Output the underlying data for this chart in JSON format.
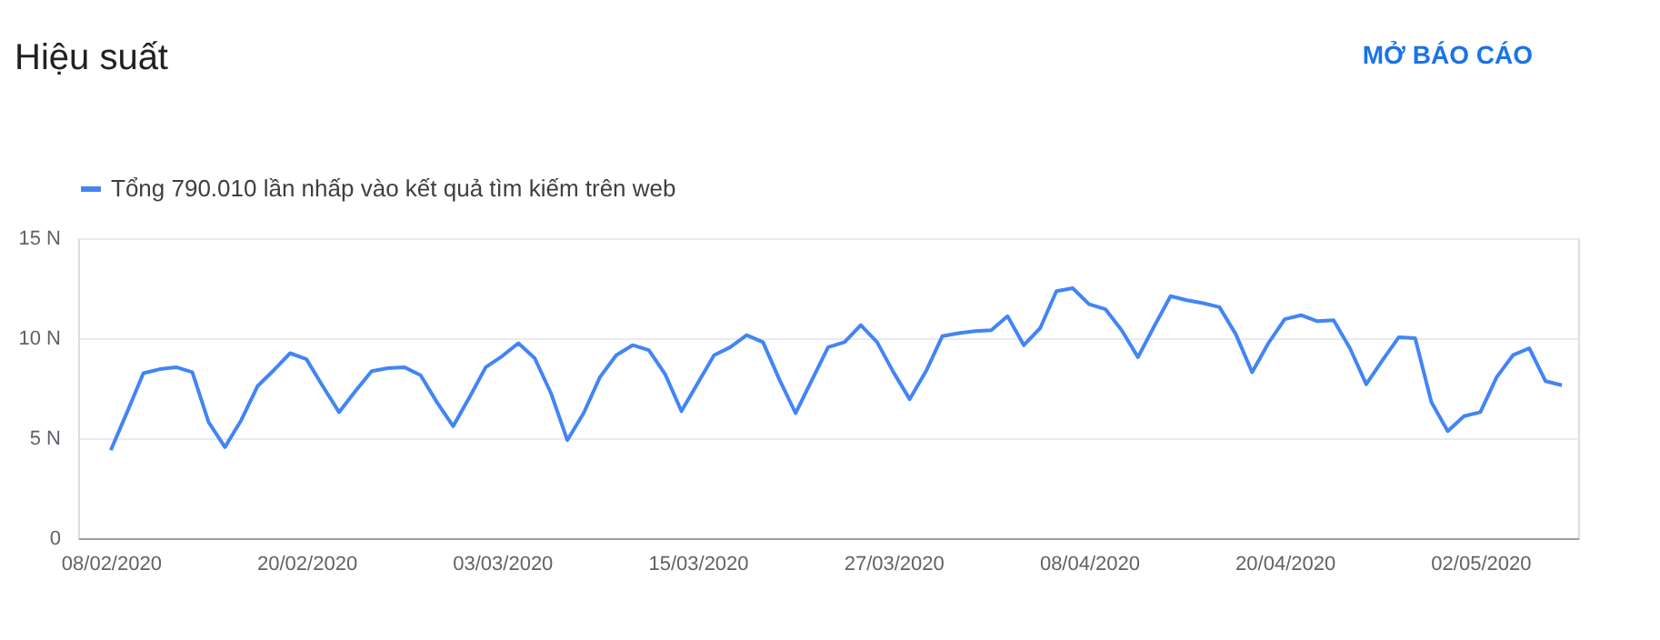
{
  "chart_data": {
    "type": "line",
    "title": "Hiệu suất",
    "annotations": [
      "MỞ BÁO CÁO"
    ],
    "x": [
      "2020-02-08",
      "2020-02-09",
      "2020-02-10",
      "2020-02-11",
      "2020-02-12",
      "2020-02-13",
      "2020-02-14",
      "2020-02-15",
      "2020-02-16",
      "2020-02-17",
      "2020-02-18",
      "2020-02-19",
      "2020-02-20",
      "2020-02-21",
      "2020-02-22",
      "2020-02-23",
      "2020-02-24",
      "2020-02-25",
      "2020-02-26",
      "2020-02-27",
      "2020-02-28",
      "2020-02-29",
      "2020-03-01",
      "2020-03-02",
      "2020-03-03",
      "2020-03-04",
      "2020-03-05",
      "2020-03-06",
      "2020-03-07",
      "2020-03-08",
      "2020-03-09",
      "2020-03-10",
      "2020-03-11",
      "2020-03-12",
      "2020-03-13",
      "2020-03-14",
      "2020-03-15",
      "2020-03-16",
      "2020-03-17",
      "2020-03-18",
      "2020-03-19",
      "2020-03-20",
      "2020-03-21",
      "2020-03-22",
      "2020-03-23",
      "2020-03-24",
      "2020-03-25",
      "2020-03-26",
      "2020-03-27",
      "2020-03-28",
      "2020-03-29",
      "2020-03-30",
      "2020-03-31",
      "2020-04-01",
      "2020-04-02",
      "2020-04-03",
      "2020-04-04",
      "2020-04-05",
      "2020-04-06",
      "2020-04-07",
      "2020-04-08",
      "2020-04-09",
      "2020-04-10",
      "2020-04-11",
      "2020-04-12",
      "2020-04-13",
      "2020-04-14",
      "2020-04-15",
      "2020-04-16",
      "2020-04-17",
      "2020-04-18",
      "2020-04-19",
      "2020-04-20",
      "2020-04-21",
      "2020-04-22",
      "2020-04-23",
      "2020-04-24",
      "2020-04-25",
      "2020-04-26",
      "2020-04-27",
      "2020-04-28",
      "2020-04-29",
      "2020-04-30",
      "2020-05-01",
      "2020-05-02",
      "2020-05-03",
      "2020-05-04",
      "2020-05-05",
      "2020-05-06",
      "2020-05-07"
    ],
    "series": [
      {
        "name": "Tổng 790.010 lần nhấp vào kết quả tìm kiếm trên web",
        "color": "#4285f4",
        "values": [
          4.4,
          6.3,
          8.25,
          8.45,
          8.55,
          8.3,
          5.8,
          4.55,
          5.9,
          7.6,
          8.4,
          9.25,
          8.95,
          7.6,
          6.3,
          7.35,
          8.35,
          8.5,
          8.55,
          8.15,
          6.8,
          5.6,
          7.05,
          8.55,
          9.1,
          9.75,
          9.0,
          7.25,
          4.9,
          6.25,
          8.05,
          9.15,
          9.65,
          9.4,
          8.2,
          6.35,
          7.75,
          9.15,
          9.55,
          10.15,
          9.8,
          7.95,
          6.25,
          7.9,
          9.55,
          9.8,
          10.65,
          9.8,
          8.3,
          6.95,
          8.35,
          10.1,
          10.25,
          10.35,
          10.4,
          11.1,
          9.65,
          10.5,
          12.35,
          12.5,
          11.7,
          11.45,
          10.4,
          9.05,
          10.6,
          12.1,
          11.9,
          11.75,
          11.55,
          10.2,
          8.3,
          9.75,
          10.95,
          11.15,
          10.85,
          10.9,
          9.5,
          7.7,
          8.9,
          10.05,
          10.0,
          6.8,
          5.35,
          6.1,
          6.3,
          8.05,
          9.15,
          9.5,
          7.85,
          7.65
        ]
      }
    ],
    "xlim": [
      "2020-02-06",
      "2020-05-08"
    ],
    "xticks": [
      {
        "value": "2020-02-08",
        "label": "08/02/2020"
      },
      {
        "value": "2020-02-20",
        "label": "20/02/2020"
      },
      {
        "value": "2020-03-03",
        "label": "03/03/2020"
      },
      {
        "value": "2020-03-15",
        "label": "15/03/2020"
      },
      {
        "value": "2020-03-27",
        "label": "27/03/2020"
      },
      {
        "value": "2020-04-08",
        "label": "08/04/2020"
      },
      {
        "value": "2020-04-20",
        "label": "20/04/2020"
      },
      {
        "value": "2020-05-02",
        "label": "02/05/2020"
      }
    ],
    "ylim": [
      0,
      15
    ],
    "yticks": [
      0,
      {
        "value": 5,
        "label": "5 N"
      },
      {
        "value": 10,
        "label": "10 N"
      },
      {
        "value": 15,
        "label": "15 N"
      }
    ],
    "grid": "y",
    "legend": "top left",
    "line_style": "solid"
  }
}
